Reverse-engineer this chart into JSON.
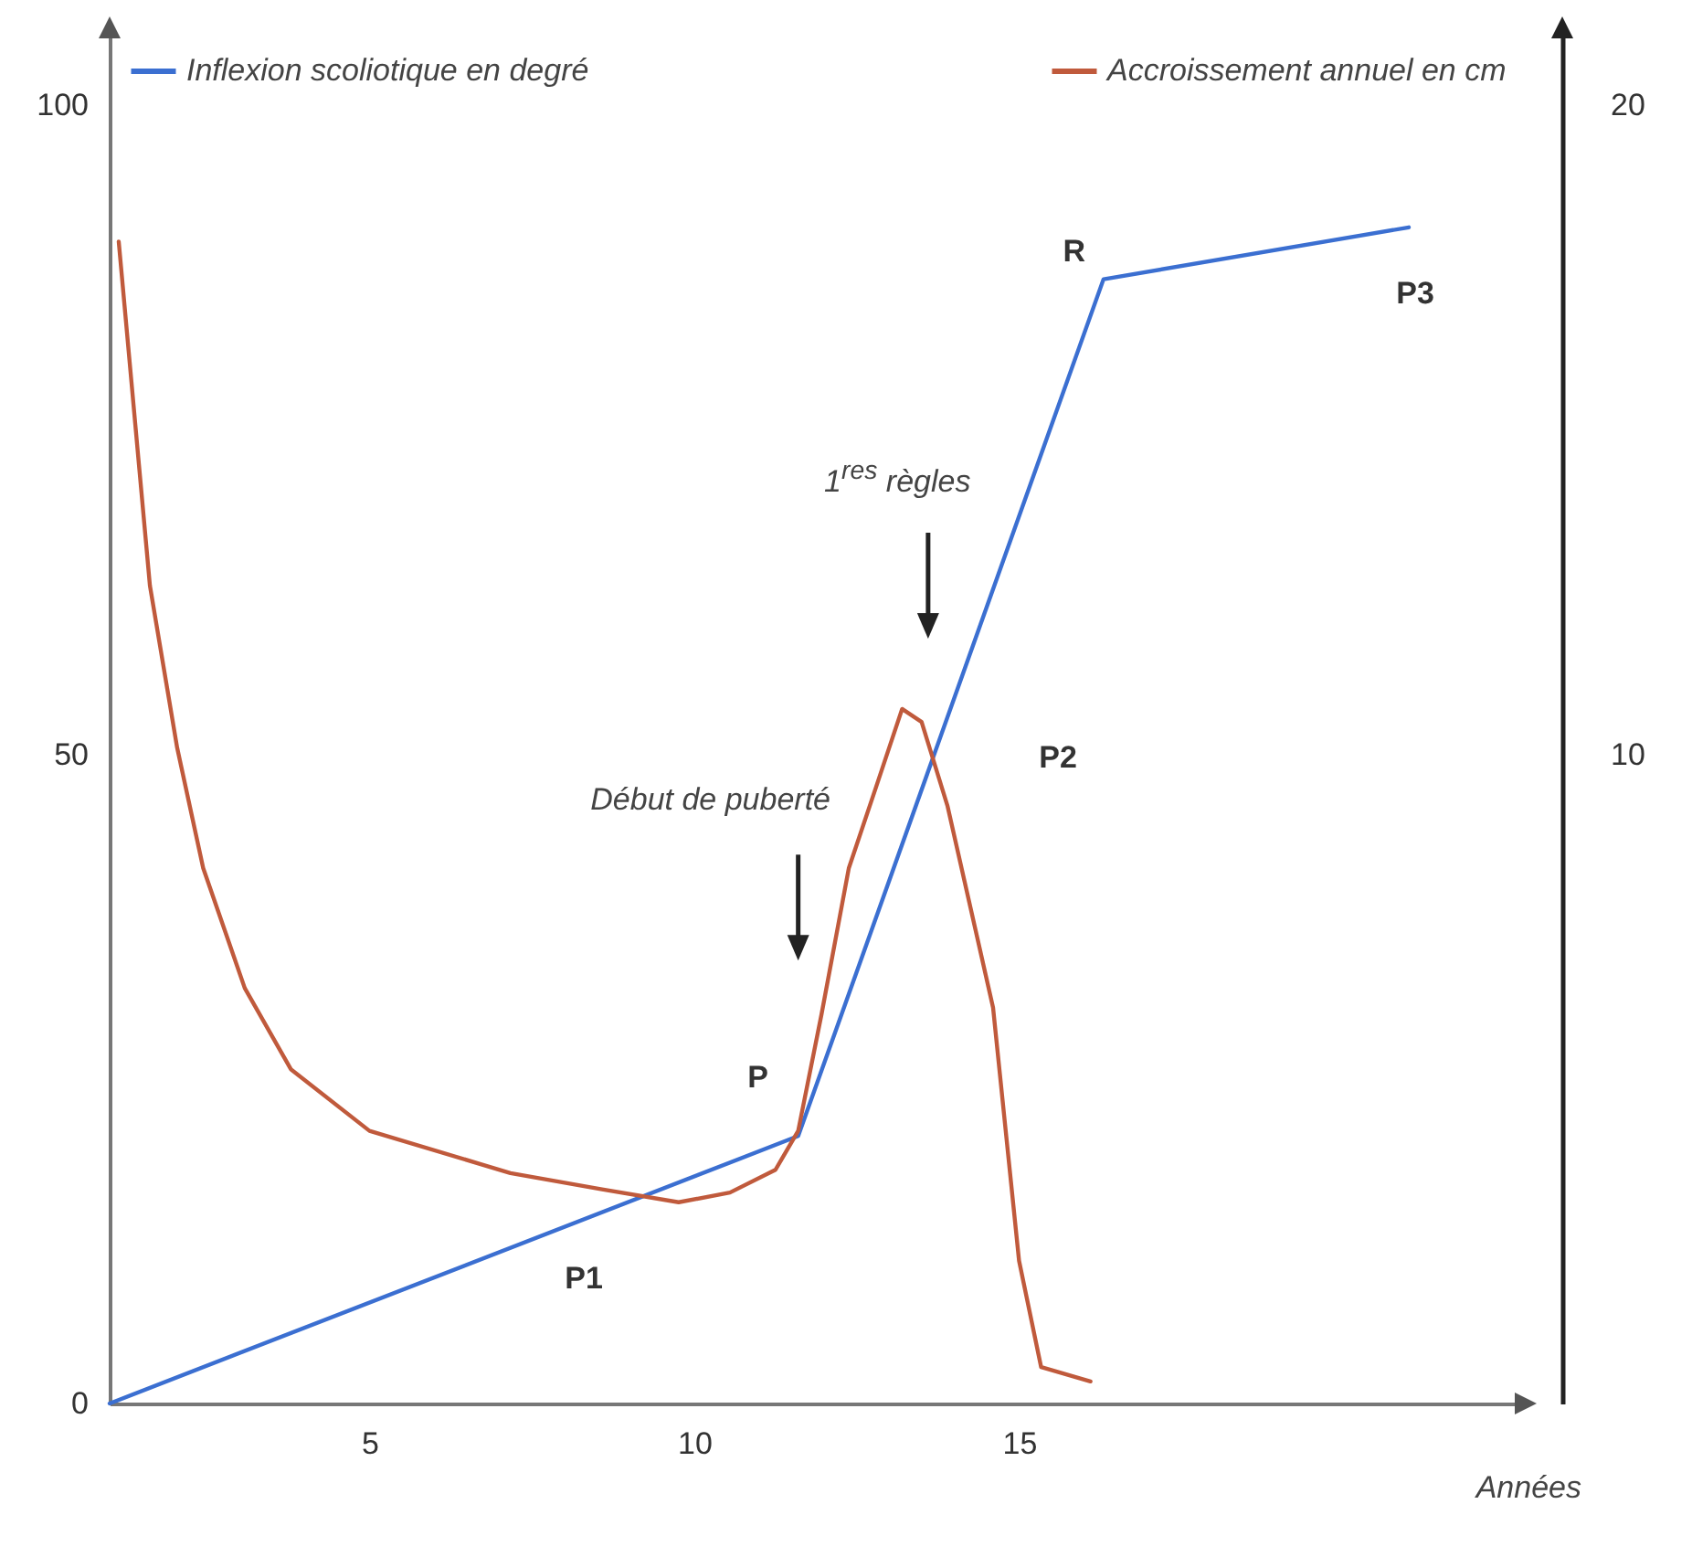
{
  "chart_data": {
    "type": "line",
    "xlabel": "Années",
    "legend": "top",
    "grid": false,
    "xlim": [
      1,
      22.8
    ],
    "xticks": [
      5,
      10,
      15
    ],
    "ylim": [
      0,
      106
    ],
    "yticks": [
      0,
      50,
      100
    ],
    "y2lim": [
      0,
      21.2
    ],
    "y2ticks": [
      10,
      20
    ],
    "series": [
      {
        "name": "Inflexion scoliotique en degré",
        "color": "#3b6fd1",
        "x": [
          1,
          11.6,
          16.3,
          21.0
        ],
        "values": [
          0,
          20.6,
          86.6,
          90.6
        ]
      },
      {
        "name": "Accroissement annuel en cm",
        "color": "#c05a3c",
        "axis": "y2",
        "x": [
          1.14,
          1.62,
          2.04,
          2.44,
          3.08,
          3.79,
          5,
          7.17,
          8.58,
          9.76,
          10.55,
          11.25,
          11.6,
          11.96,
          12.38,
          12.8,
          13.2,
          13.5,
          13.9,
          14.6,
          15,
          15.34,
          16.1
        ],
        "values": [
          17.9,
          12.6,
          10.1,
          8.25,
          6.4,
          5.15,
          4.2,
          3.55,
          3.3,
          3.1,
          3.25,
          3.6,
          4.2,
          6.0,
          8.25,
          9.5,
          10.7,
          10.5,
          9.2,
          6.1,
          2.2,
          0.56,
          0.34
        ]
      }
    ],
    "annotations": [
      "P1",
      "P",
      "P2",
      "R",
      "P3",
      "Début de puberté",
      "1$^{res}$ règles"
    ]
  }
}
